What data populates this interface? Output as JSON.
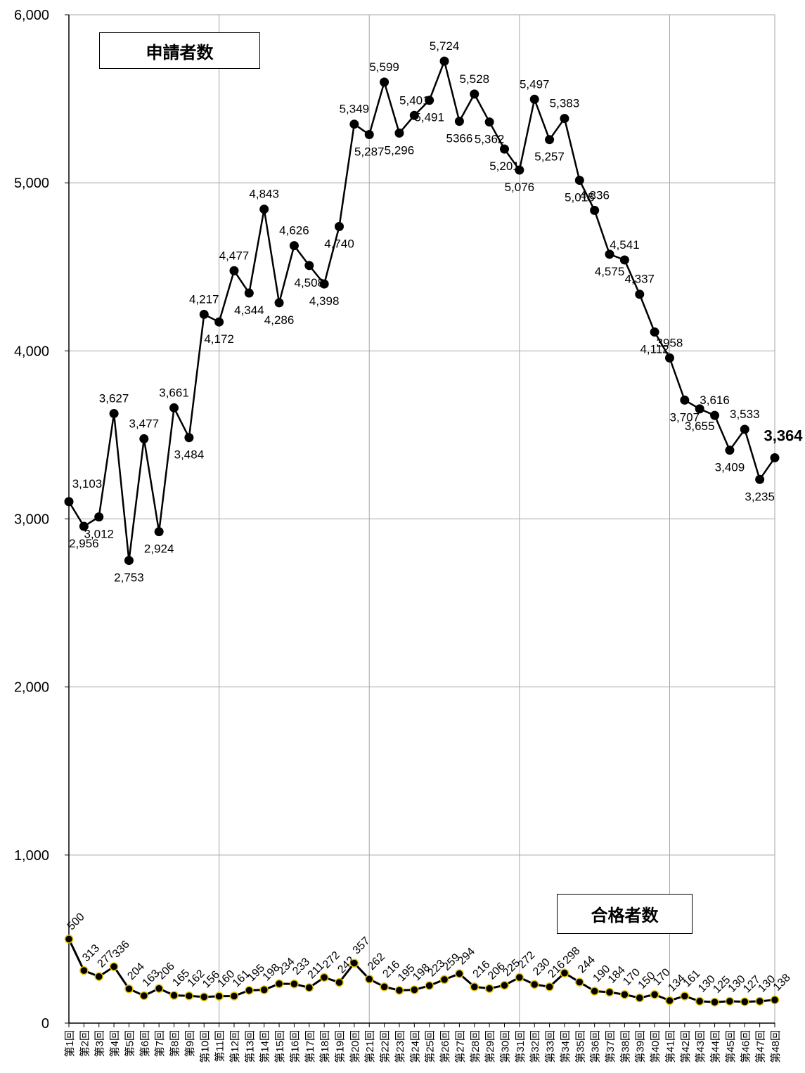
{
  "chart_data": {
    "type": "line",
    "ylim": [
      0,
      6000
    ],
    "y_ticks": [
      "0",
      "1,000",
      "2,000",
      "3,000",
      "4,000",
      "5,000",
      "6,000"
    ],
    "grid": true,
    "categories": [
      "第1回",
      "第2回",
      "第3回",
      "第4回",
      "第5回",
      "第6回",
      "第7回",
      "第8回",
      "第9回",
      "第10回",
      "第11回",
      "第12回",
      "第13回",
      "第14回",
      "第15回",
      "第16回",
      "第17回",
      "第18回",
      "第19回",
      "第20回",
      "第21回",
      "第22回",
      "第23回",
      "第24回",
      "第25回",
      "第26回",
      "第27回",
      "第28回",
      "第29回",
      "第30回",
      "第31回",
      "第32回",
      "第33回",
      "第34回",
      "第35回",
      "第36回",
      "第37回",
      "第38回",
      "第39回",
      "第40回",
      "第41回",
      "第42回",
      "第43回",
      "第44回",
      "第45回",
      "第46回",
      "第47回",
      "第48回"
    ],
    "series": [
      {
        "name": "申請者数",
        "values": [
          3103,
          2956,
          3012,
          3627,
          2753,
          3477,
          2924,
          3661,
          3484,
          4217,
          4172,
          4477,
          4344,
          4843,
          4286,
          4626,
          4508,
          4398,
          4740,
          5349,
          5287,
          5599,
          5296,
          5401,
          5491,
          5724,
          5366,
          5528,
          5362,
          5201,
          5076,
          5497,
          5257,
          5383,
          5015,
          4836,
          4575,
          4541,
          4337,
          4112,
          3958,
          3707,
          3655,
          3616,
          3409,
          3533,
          3235,
          3364
        ],
        "labels": [
          "3,103",
          "2,956",
          "3,012",
          "3,627",
          "2,753",
          "3,477",
          "2,924",
          "3,661",
          "3,484",
          "4,217",
          "4,172",
          "4,477",
          "4,344",
          "4,843",
          "4,286",
          "4,626",
          "4,508",
          "4,398",
          "4,740",
          "5,349",
          "5,287",
          "5,599",
          "5,296",
          "5,401",
          "5,491",
          "5,724",
          "5366",
          "5,528",
          "5,362",
          "5,201",
          "5,076",
          "5,497",
          "5,257",
          "5,383",
          "5,015",
          "4,836",
          "4,575",
          "4,541",
          "4,337",
          "4,112",
          "3958",
          "3,707",
          "3,655",
          "3,616",
          "3,409",
          "3,533",
          "3,235",
          "3,364"
        ]
      },
      {
        "name": "合格者数",
        "values": [
          500,
          313,
          277,
          336,
          204,
          163,
          206,
          165,
          162,
          156,
          160,
          161,
          195,
          198,
          234,
          233,
          211,
          272,
          242,
          357,
          262,
          216,
          195,
          198,
          223,
          259,
          294,
          216,
          206,
          225,
          272,
          230,
          216,
          298,
          244,
          190,
          184,
          170,
          150,
          170,
          134,
          161,
          130,
          125,
          130,
          127,
          130,
          138
        ],
        "labels": [
          "500",
          "313",
          "277",
          "336",
          "204",
          "163",
          "206",
          "165",
          "162",
          "156",
          "160",
          "161",
          "195",
          "198",
          "234",
          "233",
          "211",
          "272",
          "242",
          "357",
          "262",
          "216",
          "195",
          "198",
          "223",
          "259",
          "294",
          "216",
          "206",
          "225",
          "272",
          "230",
          "216",
          "298",
          "244",
          "190",
          "184",
          "170",
          "150",
          "170",
          "134",
          "161",
          "130",
          "125",
          "130",
          "127",
          "130",
          "138"
        ]
      }
    ]
  },
  "legend": {
    "applicants": "申請者数",
    "passers": "合格者数"
  },
  "colors": {
    "line": "#000000",
    "grid": "#a6a6a6",
    "marker_fill_passers": "#000000",
    "marker_outline_passers": "#e6c200"
  }
}
